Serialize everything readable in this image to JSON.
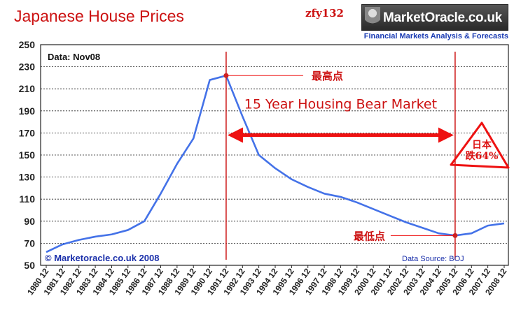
{
  "header": {
    "title": "Japanese House Prices",
    "watermark": "zfy132",
    "logo_text": "MarketOracle.co.uk",
    "logo_subtitle": "Financial Markets Analysis & Forecasts"
  },
  "chart_data": {
    "type": "line",
    "title": "Japanese House Prices",
    "xlabel": "",
    "ylabel": "",
    "ylim": [
      50,
      250
    ],
    "yticks": [
      50,
      70,
      90,
      110,
      130,
      150,
      170,
      190,
      210,
      230,
      250
    ],
    "grid": true,
    "categories": [
      "1980 12",
      "1981 12",
      "1982 12",
      "1983 12",
      "1984 12",
      "1985 12",
      "1986 12",
      "1987 12",
      "1988 12",
      "1989 12",
      "1990 12",
      "1991 12",
      "1992 12",
      "1993 12",
      "1994 12",
      "1995 12",
      "1996 12",
      "1997 12",
      "1998 12",
      "1999 12",
      "2000 12",
      "2001 12",
      "2002 12",
      "2003 12",
      "2004 12",
      "2005 12",
      "2006 12",
      "2007 12",
      "2008 12"
    ],
    "series": [
      {
        "name": "",
        "color": "#4472e8",
        "values": [
          62,
          69,
          73,
          76,
          78,
          82,
          90,
          115,
          142,
          165,
          218,
          222,
          185,
          150,
          138,
          128,
          121,
          115,
          112,
          107,
          101,
          95,
          89,
          84,
          79,
          77,
          79,
          86,
          88
        ]
      }
    ],
    "data_label": "Data: Nov08",
    "copyright": "© Marketoracle.co.uk 2008",
    "source": "Data Source: BOJ",
    "annotations": {
      "peak_label": "最高点",
      "trough_label": "最低点",
      "span_label": "15 Year Housing Bear Market",
      "decline_line1": "日本",
      "decline_line2": "跌64%"
    },
    "colors": {
      "line": "#4472e8",
      "annotation": "#ee1111",
      "marker": "#cc2222"
    }
  }
}
